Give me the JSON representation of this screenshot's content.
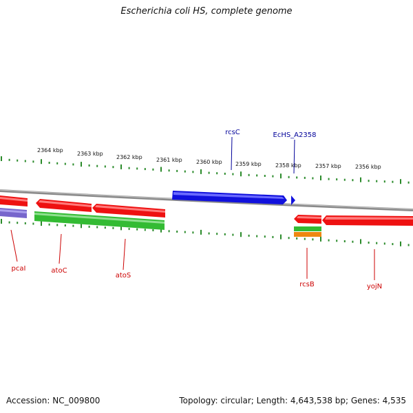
{
  "title": "Escherichia coli HS, complete genome",
  "accession_text": "Accession: NC_009800",
  "summary_text": "Topology: circular; Length: 4,643,538 bp; Genes: 4,535",
  "colors": {
    "backbone": "#8a8a8a",
    "ticks": "#2a8a2a",
    "red_gene": "#ee1111",
    "blue_gene": "#1111dd",
    "green_gene": "#33bb33",
    "orange_gene": "#ee8811",
    "purple_gene": "#7766cc",
    "label_red": "#cc0000",
    "label_blue": "#000099"
  },
  "scale_labels": [
    "2364 kbp",
    "2363 kbp",
    "2362 kbp",
    "2361 kbp",
    "2360 kbp",
    "2359 kbp",
    "2358 kbp",
    "2357 kbp",
    "2356 kbp"
  ],
  "gene_labels": {
    "above": [
      "rcsC",
      "EcHS_A2358"
    ],
    "below": [
      "pcaI",
      "atoC",
      "atoS",
      "rcsB",
      "yojN"
    ]
  }
}
